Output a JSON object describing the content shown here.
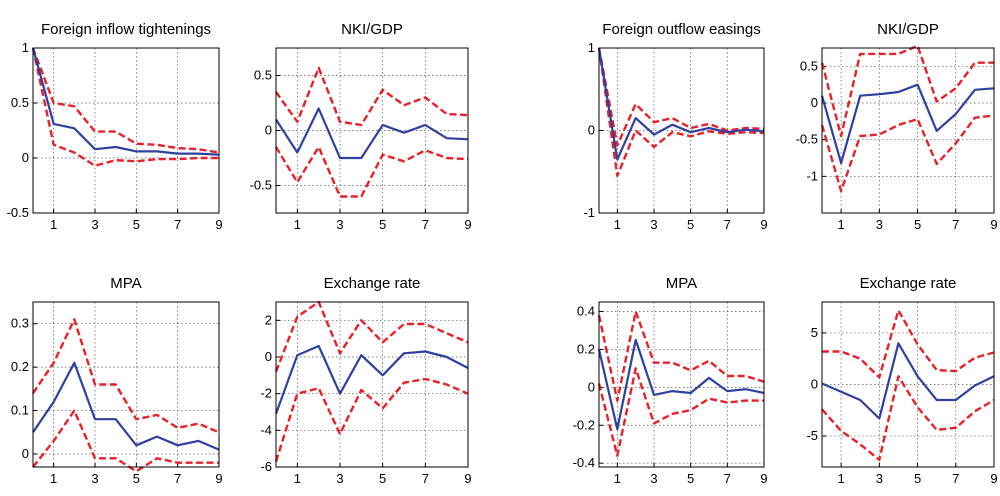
{
  "chart_data": [
    {
      "type": "line",
      "title": "Foreign inflow tightenings",
      "x": [
        0,
        1,
        2,
        3,
        4,
        5,
        6,
        7,
        8,
        9
      ],
      "xticks": [
        "1",
        "3",
        "5",
        "7",
        "9"
      ],
      "xlim": [
        0,
        9
      ],
      "ylim": [
        -0.5,
        1
      ],
      "yticks": [
        -0.5,
        0,
        0.5,
        1
      ],
      "ytick_labels": [
        "-0.5",
        "0",
        "0.5",
        "1"
      ],
      "grid": true,
      "series": [
        {
          "role": "upper",
          "color": "#e8202a",
          "values": [
            1,
            0.5,
            0.47,
            0.24,
            0.24,
            0.13,
            0.12,
            0.09,
            0.08,
            0.05
          ]
        },
        {
          "role": "median",
          "color": "#3040a0",
          "values": [
            1,
            0.31,
            0.27,
            0.08,
            0.1,
            0.06,
            0.06,
            0.04,
            0.04,
            0.03
          ]
        },
        {
          "role": "lower",
          "color": "#e8202a",
          "values": [
            1,
            0.12,
            0.05,
            -0.07,
            -0.02,
            -0.03,
            -0.01,
            -0.01,
            0,
            0
          ]
        }
      ]
    },
    {
      "type": "line",
      "title": "NKI/GDP",
      "x": [
        0,
        1,
        2,
        3,
        4,
        5,
        6,
        7,
        8,
        9
      ],
      "xticks": [
        "1",
        "3",
        "5",
        "7",
        "9"
      ],
      "xlim": [
        0,
        9
      ],
      "ylim": [
        -0.75,
        0.75
      ],
      "yticks": [
        -0.5,
        0,
        0.5
      ],
      "ytick_labels": [
        "-0.5",
        "0",
        "0.5"
      ],
      "grid": true,
      "series": [
        {
          "role": "upper",
          "color": "#e8202a",
          "values": [
            0.35,
            0.08,
            0.57,
            0.08,
            0.05,
            0.37,
            0.23,
            0.3,
            0.15,
            0.14
          ]
        },
        {
          "role": "median",
          "color": "#3040a0",
          "values": [
            0.1,
            -0.2,
            0.2,
            -0.25,
            -0.25,
            0.05,
            -0.02,
            0.05,
            -0.07,
            -0.08
          ]
        },
        {
          "role": "lower",
          "color": "#e8202a",
          "values": [
            -0.15,
            -0.47,
            -0.15,
            -0.6,
            -0.6,
            -0.22,
            -0.28,
            -0.18,
            -0.25,
            -0.26
          ]
        }
      ]
    },
    {
      "type": "line",
      "title": "Foreign outflow easings",
      "x": [
        0,
        1,
        2,
        3,
        4,
        5,
        6,
        7,
        8,
        9
      ],
      "xticks": [
        "1",
        "3",
        "5",
        "7",
        "9"
      ],
      "xlim": [
        0,
        9
      ],
      "ylim": [
        -1,
        1
      ],
      "yticks": [
        -1,
        0,
        1
      ],
      "ytick_labels": [
        "-1",
        "0",
        "1"
      ],
      "grid": true,
      "series": [
        {
          "role": "upper",
          "color": "#e8202a",
          "values": [
            1,
            -0.18,
            0.32,
            0.1,
            0.15,
            0.03,
            0.08,
            0,
            0.03,
            0.02
          ]
        },
        {
          "role": "median",
          "color": "#3040a0",
          "values": [
            1,
            -0.35,
            0.15,
            -0.05,
            0.07,
            -0.02,
            0.03,
            -0.02,
            0.01,
            -0.01
          ]
        },
        {
          "role": "lower",
          "color": "#e8202a",
          "values": [
            1,
            -0.55,
            0,
            -0.2,
            -0.02,
            -0.07,
            -0.01,
            -0.04,
            -0.02,
            -0.03
          ]
        }
      ]
    },
    {
      "type": "line",
      "title": "NKI/GDP",
      "x": [
        0,
        1,
        2,
        3,
        4,
        5,
        6,
        7,
        8,
        9
      ],
      "xticks": [
        "1",
        "3",
        "5",
        "7",
        "9"
      ],
      "xlim": [
        0,
        9
      ],
      "ylim": [
        -1.5,
        0.75
      ],
      "yticks": [
        -1,
        -0.5,
        0,
        0.5
      ],
      "ytick_labels": [
        "-1",
        "-0.5",
        "0",
        "0.5"
      ],
      "grid": true,
      "series": [
        {
          "role": "upper",
          "color": "#e8202a",
          "values": [
            0.55,
            -0.45,
            0.67,
            0.67,
            0.67,
            0.78,
            0.02,
            0.2,
            0.55,
            0.55
          ]
        },
        {
          "role": "median",
          "color": "#3040a0",
          "values": [
            0.1,
            -0.82,
            0.1,
            0.12,
            0.15,
            0.25,
            -0.38,
            -0.15,
            0.18,
            0.2
          ]
        },
        {
          "role": "lower",
          "color": "#e8202a",
          "values": [
            -0.3,
            -1.2,
            -0.45,
            -0.43,
            -0.3,
            -0.22,
            -0.83,
            -0.55,
            -0.2,
            -0.17
          ]
        }
      ]
    },
    {
      "type": "line",
      "title": "MPA",
      "x": [
        0,
        1,
        2,
        3,
        4,
        5,
        6,
        7,
        8,
        9
      ],
      "xticks": [
        "1",
        "3",
        "5",
        "7",
        "9"
      ],
      "xlim": [
        0,
        9
      ],
      "ylim": [
        -0.03,
        0.35
      ],
      "yticks": [
        0,
        0.1,
        0.2,
        0.3
      ],
      "ytick_labels": [
        "0",
        "0.1",
        "0.2",
        "0.3"
      ],
      "grid": true,
      "series": [
        {
          "role": "upper",
          "color": "#e8202a",
          "values": [
            0.14,
            0.21,
            0.31,
            0.16,
            0.16,
            0.08,
            0.09,
            0.06,
            0.07,
            0.05
          ]
        },
        {
          "role": "median",
          "color": "#3040a0",
          "values": [
            0.05,
            0.12,
            0.21,
            0.08,
            0.08,
            0.02,
            0.04,
            0.02,
            0.03,
            0.01
          ]
        },
        {
          "role": "lower",
          "color": "#e8202a",
          "values": [
            -0.03,
            0.03,
            0.1,
            -0.01,
            -0.01,
            -0.04,
            -0.01,
            -0.02,
            -0.02,
            -0.02
          ]
        }
      ]
    },
    {
      "type": "line",
      "title": "Exchange rate",
      "x": [
        0,
        1,
        2,
        3,
        4,
        5,
        6,
        7,
        8,
        9
      ],
      "xticks": [
        "1",
        "3",
        "5",
        "7",
        "9"
      ],
      "xlim": [
        0,
        9
      ],
      "ylim": [
        -6,
        3
      ],
      "yticks": [
        -6,
        -4,
        -2,
        0,
        2
      ],
      "ytick_labels": [
        "-6",
        "-4",
        "-2",
        "0",
        "2"
      ],
      "grid": true,
      "series": [
        {
          "role": "upper",
          "color": "#e8202a",
          "values": [
            -0.8,
            2.2,
            3,
            0.2,
            2,
            0.8,
            1.8,
            1.8,
            1.3,
            0.8
          ]
        },
        {
          "role": "median",
          "color": "#3040a0",
          "values": [
            -3.1,
            0.1,
            0.6,
            -2,
            0.1,
            -1,
            0.2,
            0.3,
            0,
            -0.6
          ]
        },
        {
          "role": "lower",
          "color": "#e8202a",
          "values": [
            -5.7,
            -2,
            -1.7,
            -4.2,
            -1.8,
            -2.8,
            -1.4,
            -1.2,
            -1.5,
            -2
          ]
        }
      ]
    },
    {
      "type": "line",
      "title": "MPA",
      "x": [
        0,
        1,
        2,
        3,
        4,
        5,
        6,
        7,
        8,
        9
      ],
      "xticks": [
        "1",
        "3",
        "5",
        "7",
        "9"
      ],
      "xlim": [
        0,
        9
      ],
      "ylim": [
        -0.42,
        0.45
      ],
      "yticks": [
        -0.4,
        -0.2,
        0,
        0.2,
        0.4
      ],
      "ytick_labels": [
        "-0.4",
        "-0.2",
        "0",
        "0.2",
        "0.4"
      ],
      "grid": true,
      "series": [
        {
          "role": "upper",
          "color": "#e8202a",
          "values": [
            0.38,
            -0.07,
            0.4,
            0.13,
            0.13,
            0.09,
            0.14,
            0.06,
            0.06,
            0.03
          ]
        },
        {
          "role": "median",
          "color": "#3040a0",
          "values": [
            0.2,
            -0.22,
            0.25,
            -0.04,
            -0.02,
            -0.03,
            0.05,
            -0.02,
            -0.01,
            -0.03
          ]
        },
        {
          "role": "lower",
          "color": "#e8202a",
          "values": [
            0.02,
            -0.36,
            0.1,
            -0.19,
            -0.14,
            -0.12,
            -0.06,
            -0.08,
            -0.07,
            -0.07
          ]
        }
      ]
    },
    {
      "type": "line",
      "title": "Exchange rate",
      "x": [
        0,
        1,
        2,
        3,
        4,
        5,
        6,
        7,
        8,
        9
      ],
      "xticks": [
        "1",
        "3",
        "5",
        "7",
        "9"
      ],
      "xlim": [
        0,
        9
      ],
      "ylim": [
        -8,
        8
      ],
      "yticks": [
        -5,
        0,
        5
      ],
      "ytick_labels": [
        "-5",
        "0",
        "5"
      ],
      "grid": true,
      "series": [
        {
          "role": "upper",
          "color": "#e8202a",
          "values": [
            3.2,
            3.2,
            2.5,
            0.7,
            7.2,
            3.9,
            1.4,
            1.3,
            2.6,
            3.1
          ]
        },
        {
          "role": "median",
          "color": "#3040a0",
          "values": [
            0.1,
            -0.7,
            -1.5,
            -3.3,
            4,
            0.8,
            -1.5,
            -1.5,
            -0.1,
            0.8
          ]
        },
        {
          "role": "lower",
          "color": "#e8202a",
          "values": [
            -2.4,
            -4.5,
            -5.8,
            -7.3,
            0.8,
            -2.2,
            -4.4,
            -4.2,
            -2.6,
            -1.5
          ]
        }
      ]
    }
  ]
}
